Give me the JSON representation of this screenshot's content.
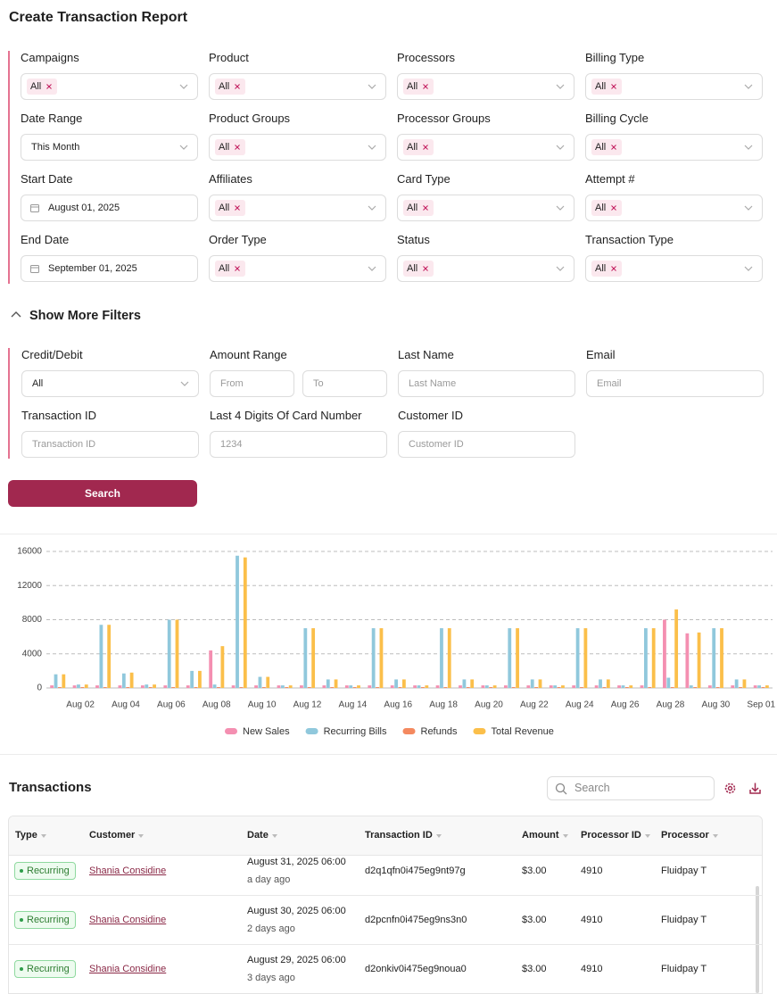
{
  "header": {
    "title": "Create Transaction Report"
  },
  "filters": [
    {
      "label": "Campaigns",
      "tag": "All"
    },
    {
      "label": "Product",
      "tag": "All"
    },
    {
      "label": "Processors",
      "tag": "All"
    },
    {
      "label": "Billing Type",
      "tag": "All"
    },
    {
      "label": "Date Range",
      "selected": "This Month"
    },
    {
      "label": "Product Groups",
      "tag": "All"
    },
    {
      "label": "Processor Groups",
      "tag": "All"
    },
    {
      "label": "Billing Cycle",
      "tag": "All"
    },
    {
      "label": "Start Date",
      "date": "August 01, 2025"
    },
    {
      "label": "Affiliates",
      "tag": "All"
    },
    {
      "label": "Card Type",
      "tag": "All"
    },
    {
      "label": "Attempt #",
      "tag": "All"
    },
    {
      "label": "End Date",
      "date": "September 01, 2025"
    },
    {
      "label": "Order Type",
      "tag": "All"
    },
    {
      "label": "Status",
      "tag": "All"
    },
    {
      "label": "Transaction Type",
      "tag": "All"
    }
  ],
  "more_filters": {
    "toggle": "Show More Filters",
    "fields": [
      {
        "label": "Credit/Debit",
        "selected": "All"
      },
      {
        "label": "Amount Range",
        "placeholders": [
          "From",
          "To"
        ]
      },
      {
        "label": "Last Name",
        "placeholder": "Last Name"
      },
      {
        "label": "Email",
        "placeholder": "Email"
      },
      {
        "label": "Transaction ID",
        "placeholder": "Transaction ID"
      },
      {
        "label": "Last 4 Digits Of Card Number",
        "placeholder": "1234"
      },
      {
        "label": "Customer ID",
        "placeholder": "Customer ID"
      }
    ]
  },
  "search_button": "Search",
  "chart_data": {
    "type": "bar",
    "categories": [
      null,
      "Aug 02",
      null,
      "Aug 04",
      null,
      "Aug 06",
      null,
      "Aug 08",
      null,
      "Aug 10",
      null,
      "Aug 12",
      null,
      "Aug 14",
      null,
      "Aug 16",
      null,
      "Aug 18",
      null,
      "Aug 20",
      null,
      "Aug 22",
      null,
      "Aug 24",
      null,
      "Aug 26",
      null,
      "Aug 28",
      null,
      "Aug 30",
      null,
      "Sep 01"
    ],
    "series": [
      {
        "name": "New Sales",
        "color": "#f48fb1",
        "values": [
          300,
          300,
          300,
          300,
          300,
          300,
          300,
          4400,
          300,
          300,
          300,
          300,
          300,
          300,
          300,
          300,
          300,
          300,
          300,
          300,
          300,
          300,
          300,
          300,
          300,
          300,
          300,
          8000,
          6400,
          300,
          300,
          300
        ]
      },
      {
        "name": "Recurring Bills",
        "color": "#90c8dc",
        "values": [
          1600,
          400,
          7400,
          1700,
          400,
          8000,
          2000,
          400,
          15500,
          1300,
          300,
          7000,
          1000,
          300,
          7000,
          1000,
          300,
          7000,
          1000,
          300,
          7000,
          1000,
          300,
          7000,
          1000,
          300,
          7000,
          1200,
          300,
          7000,
          1000,
          300
        ]
      },
      {
        "name": "Refunds",
        "color": "#f4895f",
        "values": [
          100,
          100,
          100,
          100,
          100,
          100,
          100,
          100,
          100,
          100,
          100,
          100,
          100,
          100,
          100,
          100,
          100,
          100,
          100,
          100,
          100,
          100,
          100,
          100,
          100,
          100,
          100,
          100,
          100,
          100,
          100,
          100
        ]
      },
      {
        "name": "Total Revenue",
        "color": "#fbbf4a",
        "values": [
          1600,
          400,
          7400,
          1800,
          400,
          8000,
          2000,
          4900,
          15300,
          1300,
          300,
          7000,
          1000,
          300,
          7000,
          1000,
          300,
          7000,
          1000,
          300,
          7000,
          1000,
          300,
          7000,
          1000,
          300,
          7000,
          9200,
          6500,
          7000,
          1000,
          300
        ]
      }
    ],
    "ylim": [
      0,
      16000
    ],
    "yticks": [
      0,
      4000,
      8000,
      12000,
      16000
    ],
    "grid": true,
    "legend": "bottom"
  },
  "transactions": {
    "title": "Transactions",
    "search_placeholder": "Search",
    "columns": [
      "Type",
      "Customer",
      "Date",
      "Transaction ID",
      "Amount",
      "Processor ID",
      "Processor"
    ],
    "rows": [
      {
        "type": "Recurring",
        "customer": "Shania Considine",
        "date": "August 31, 2025 06:00",
        "relative": "a day ago",
        "transaction_id": "d2q1qfn0i475eg9nt97g",
        "amount": "$3.00",
        "processor_id": "4910",
        "processor": "Fluidpay T"
      },
      {
        "type": "Recurring",
        "customer": "Shania Considine",
        "date": "August 30, 2025 06:00",
        "relative": "2 days ago",
        "transaction_id": "d2pcnfn0i475eg9ns3n0",
        "amount": "$3.00",
        "processor_id": "4910",
        "processor": "Fluidpay T"
      },
      {
        "type": "Recurring",
        "customer": "Shania Considine",
        "date": "August 29, 2025 06:00",
        "relative": "3 days ago",
        "transaction_id": "d2onkiv0i475eg9noua0",
        "amount": "$3.00",
        "processor_id": "4910",
        "processor": "Fluidpay T"
      }
    ]
  }
}
